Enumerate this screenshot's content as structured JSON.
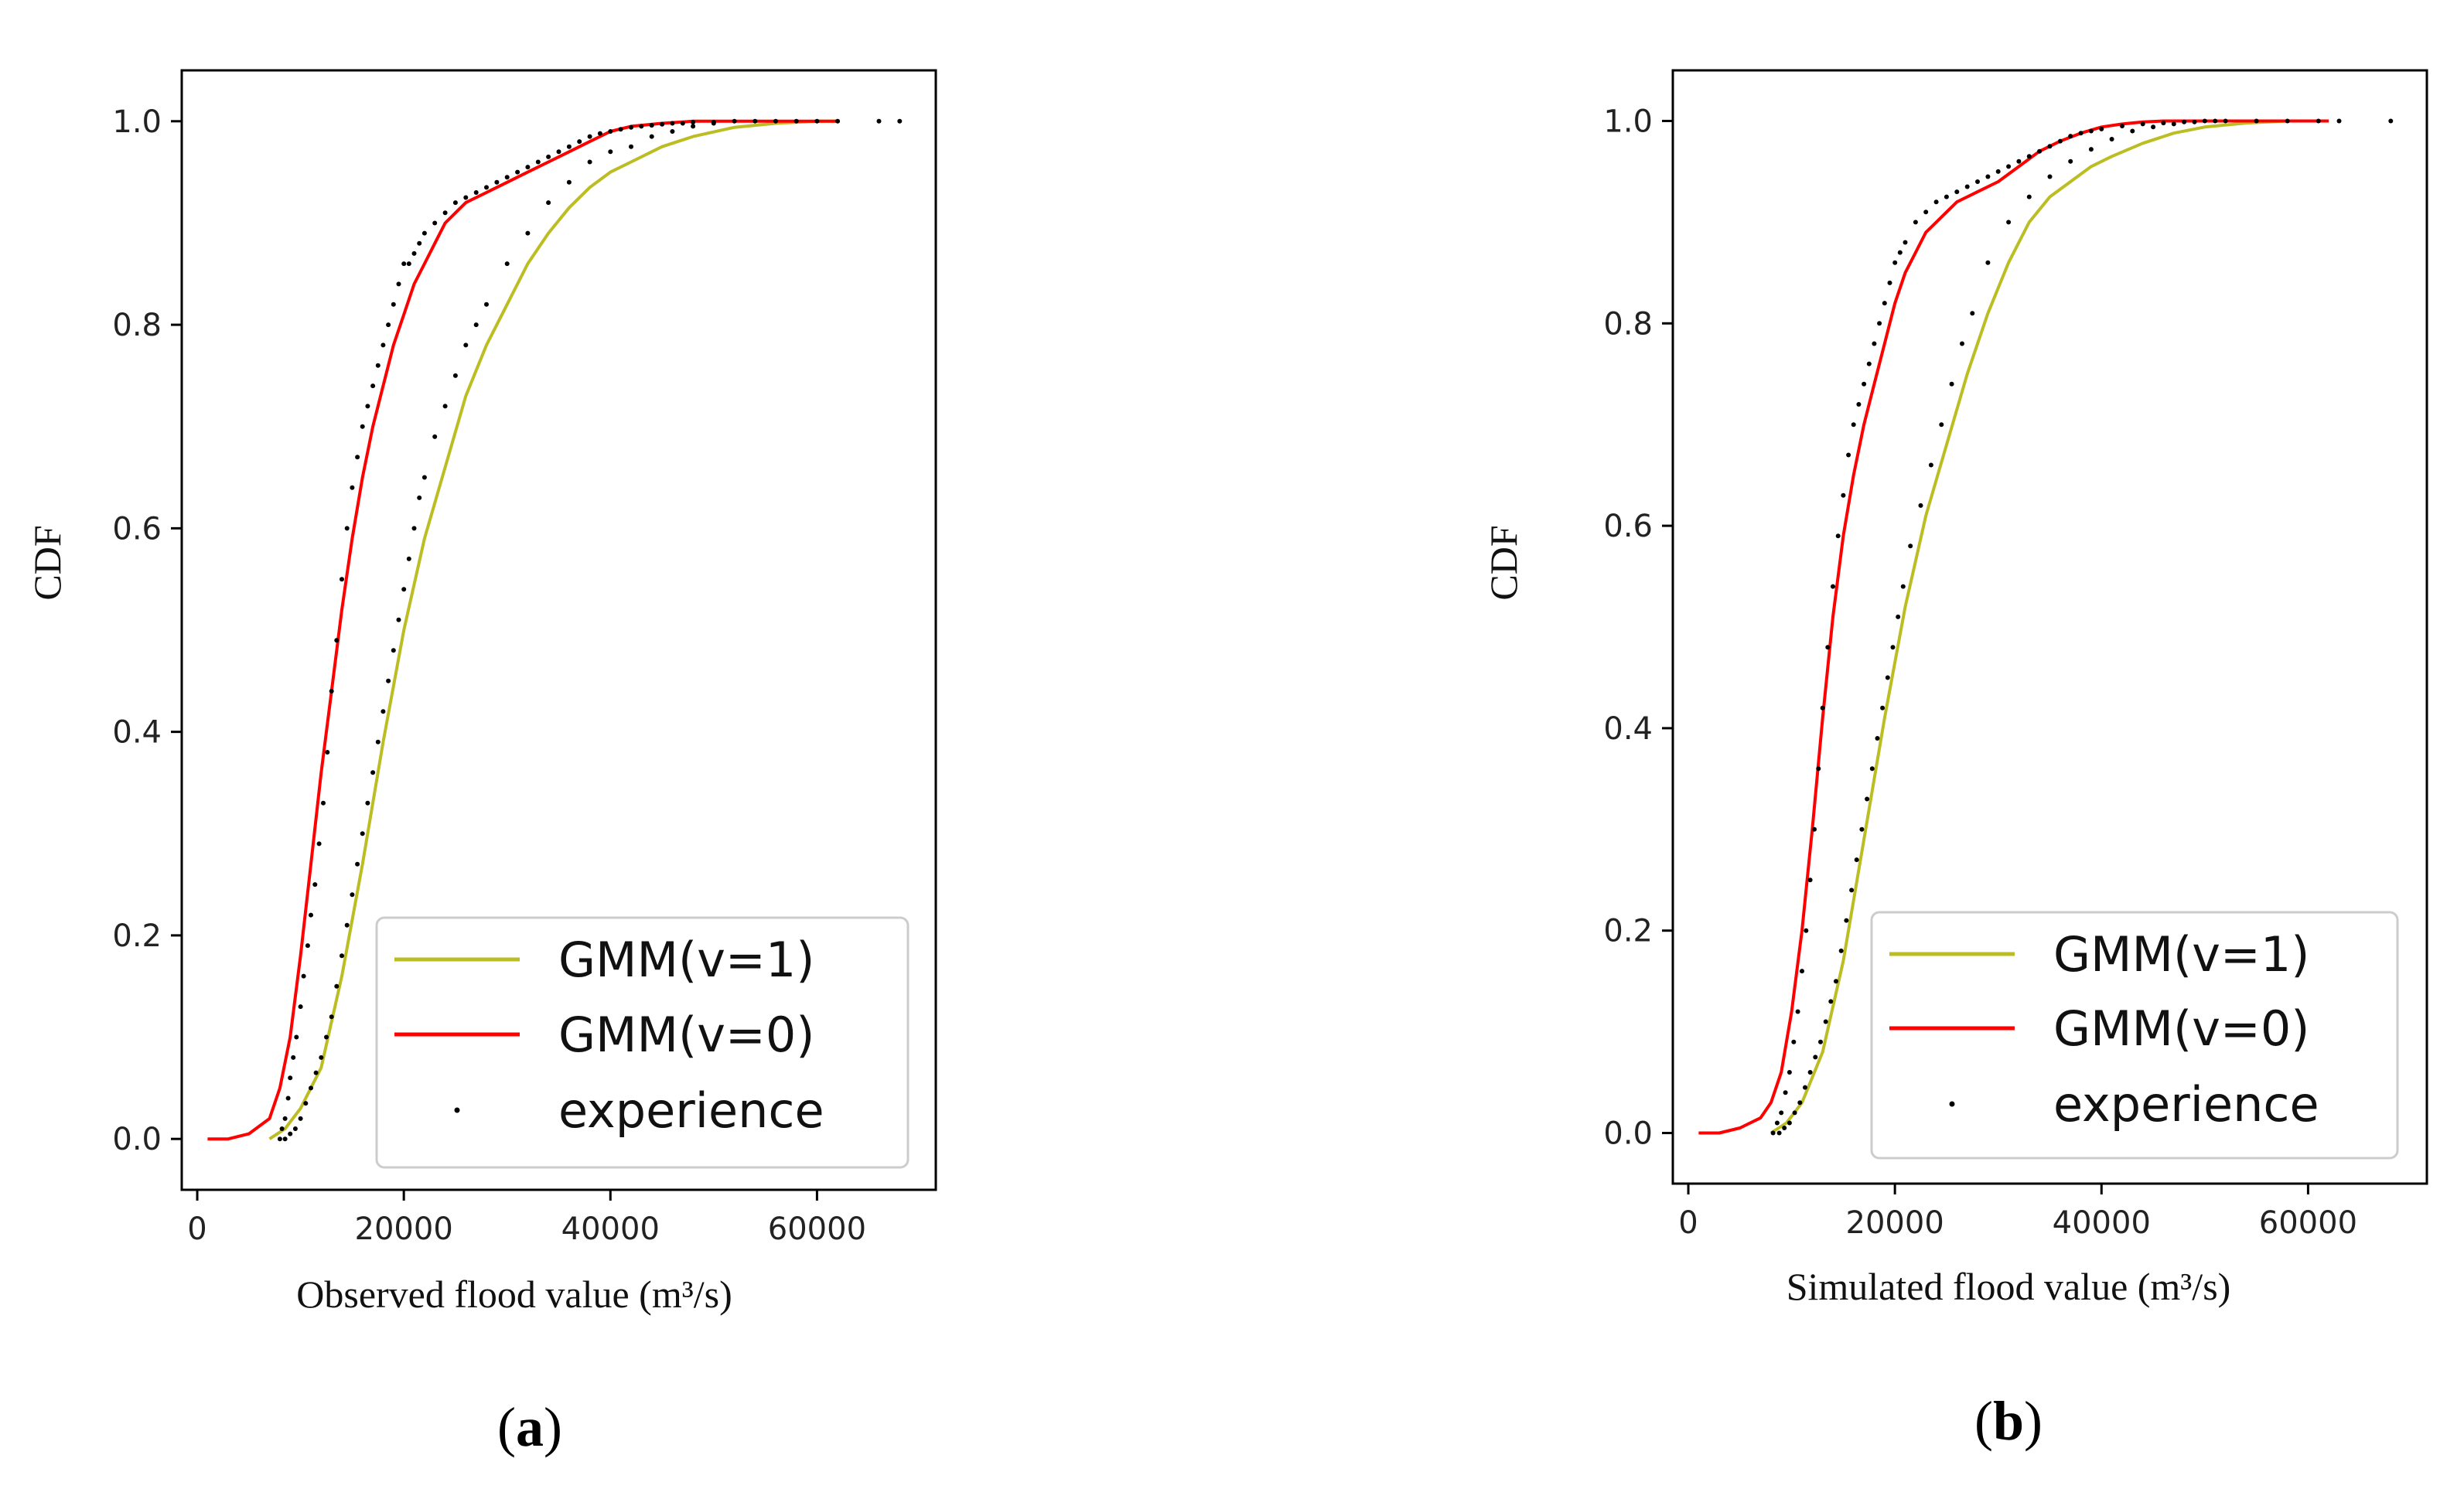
{
  "chart_data": [
    {
      "type": "line",
      "panel_label": "a",
      "xlabel": "Observed flood value (m³/s)",
      "ylabel": "CDF",
      "xlim": [
        -1500,
        71500
      ],
      "ylim": [
        -0.05,
        1.05
      ],
      "xticks": [
        0,
        20000,
        40000,
        60000
      ],
      "xtick_labels": [
        "0",
        "20000",
        "40000",
        "60000"
      ],
      "yticks": [
        0.0,
        0.2,
        0.4,
        0.6,
        0.8,
        1.0
      ],
      "ytick_labels": [
        "0.0",
        "0.2",
        "0.4",
        "0.6",
        "0.8",
        "1.0"
      ],
      "grid": false,
      "legend_position": "bottom-right",
      "series": [
        {
          "name": "GMM(v=1)",
          "style": "line",
          "color": "#bcbd22",
          "x": [
            7000,
            8500,
            10000,
            12000,
            14000,
            16000,
            18000,
            20000,
            22000,
            24000,
            26000,
            28000,
            30000,
            32000,
            34000,
            36000,
            38000,
            40000,
            42000,
            45000,
            48000,
            52000,
            56000,
            60000,
            62000
          ],
          "y": [
            0.0,
            0.01,
            0.03,
            0.07,
            0.16,
            0.27,
            0.39,
            0.5,
            0.59,
            0.66,
            0.73,
            0.78,
            0.82,
            0.86,
            0.89,
            0.915,
            0.935,
            0.95,
            0.96,
            0.975,
            0.985,
            0.994,
            0.998,
            1.0,
            1.0
          ]
        },
        {
          "name": "GMM(v=0)",
          "style": "line",
          "color": "#ff0000",
          "x": [
            1000,
            3000,
            5000,
            7000,
            8000,
            9000,
            10000,
            11000,
            12000,
            13000,
            14000,
            15000,
            16000,
            17000,
            18000,
            19000,
            20000,
            21000,
            22000,
            23000,
            24000,
            25000,
            26000,
            27000,
            28000,
            30000,
            32000,
            34000,
            36000,
            38000,
            40000,
            42000,
            45000,
            48000,
            52000,
            56000,
            62000
          ],
          "y": [
            0.0,
            0.0,
            0.005,
            0.02,
            0.05,
            0.1,
            0.18,
            0.27,
            0.36,
            0.44,
            0.52,
            0.59,
            0.65,
            0.7,
            0.74,
            0.78,
            0.81,
            0.84,
            0.86,
            0.88,
            0.9,
            0.91,
            0.92,
            0.925,
            0.93,
            0.94,
            0.95,
            0.96,
            0.97,
            0.98,
            0.99,
            0.995,
            0.998,
            1.0,
            1.0,
            1.0,
            1.0
          ]
        },
        {
          "name": "experience",
          "style": "scatter",
          "color": "#000000",
          "x": [
            8000,
            8200,
            8500,
            8800,
            9000,
            9300,
            9600,
            10000,
            10300,
            10700,
            11000,
            11400,
            11800,
            12200,
            12600,
            13000,
            13500,
            14000,
            14500,
            15000,
            15500,
            16000,
            16500,
            17000,
            17500,
            18000,
            18500,
            19000,
            19500,
            20000,
            20500,
            21000,
            21500,
            22000,
            23000,
            24000,
            25000,
            26000,
            27000,
            28000,
            29000,
            30000,
            31000,
            32000,
            33000,
            34000,
            35000,
            36000,
            37000,
            38000,
            39000,
            40000,
            41000,
            42000,
            43000,
            44000,
            45000,
            46000,
            47000,
            48000,
            50000,
            52000,
            54000,
            56000,
            58000,
            60000,
            62000,
            66000,
            68000,
            8500,
            9000,
            9500,
            10000,
            10500,
            11000,
            11500,
            12000,
            12500,
            13000,
            13500,
            14000,
            14500,
            15000,
            15500,
            16000,
            16500,
            17000,
            17500,
            18000,
            18500,
            19000,
            19500,
            20000,
            20500,
            21000,
            21500,
            22000,
            23000,
            24000,
            25000,
            26000,
            27000,
            28000,
            30000,
            32000,
            34000,
            36000,
            38000,
            40000,
            42000,
            44000,
            46000,
            48000,
            50000
          ],
          "y": [
            0.0,
            0.01,
            0.02,
            0.04,
            0.06,
            0.08,
            0.1,
            0.13,
            0.16,
            0.19,
            0.22,
            0.25,
            0.29,
            0.33,
            0.38,
            0.44,
            0.49,
            0.55,
            0.6,
            0.64,
            0.67,
            0.7,
            0.72,
            0.74,
            0.76,
            0.78,
            0.8,
            0.82,
            0.84,
            0.86,
            0.86,
            0.87,
            0.88,
            0.89,
            0.9,
            0.91,
            0.92,
            0.925,
            0.93,
            0.935,
            0.94,
            0.945,
            0.95,
            0.955,
            0.96,
            0.965,
            0.97,
            0.975,
            0.98,
            0.985,
            0.988,
            0.99,
            0.992,
            0.994,
            0.995,
            0.996,
            0.997,
            0.998,
            0.998,
            0.999,
            0.999,
            1.0,
            1.0,
            1.0,
            1.0,
            1.0,
            1.0,
            1.0,
            1.0,
            0.0,
            0.005,
            0.01,
            0.02,
            0.035,
            0.05,
            0.065,
            0.08,
            0.1,
            0.12,
            0.15,
            0.18,
            0.21,
            0.24,
            0.27,
            0.3,
            0.33,
            0.36,
            0.39,
            0.42,
            0.45,
            0.48,
            0.51,
            0.54,
            0.57,
            0.6,
            0.63,
            0.65,
            0.69,
            0.72,
            0.75,
            0.78,
            0.8,
            0.82,
            0.86,
            0.89,
            0.92,
            0.94,
            0.96,
            0.97,
            0.975,
            0.985,
            0.99,
            0.995,
            0.998
          ]
        }
      ]
    },
    {
      "type": "line",
      "panel_label": "b",
      "xlabel": "Simulated  flood value (m³/s)",
      "ylabel": "CDF",
      "xlim": [
        -1500,
        71500
      ],
      "ylim": [
        -0.05,
        1.05
      ],
      "xticks": [
        0,
        20000,
        40000,
        60000
      ],
      "xtick_labels": [
        "0",
        "20000",
        "40000",
        "60000"
      ],
      "yticks": [
        0.0,
        0.2,
        0.4,
        0.6,
        0.8,
        1.0
      ],
      "ytick_labels": [
        "0.0",
        "0.2",
        "0.4",
        "0.6",
        "0.8",
        "1.0"
      ],
      "grid": false,
      "legend_position": "bottom-right",
      "series": [
        {
          "name": "GMM(v=1)",
          "style": "line",
          "color": "#bcbd22",
          "x": [
            8000,
            9500,
            11000,
            13000,
            15000,
            17000,
            19000,
            21000,
            23000,
            25000,
            27000,
            29000,
            31000,
            33000,
            35000,
            37000,
            39000,
            41000,
            44000,
            47000,
            50000,
            54000,
            58000,
            62000
          ],
          "y": [
            0.0,
            0.01,
            0.03,
            0.08,
            0.17,
            0.29,
            0.41,
            0.52,
            0.61,
            0.68,
            0.75,
            0.81,
            0.86,
            0.9,
            0.925,
            0.94,
            0.955,
            0.965,
            0.978,
            0.988,
            0.994,
            0.998,
            1.0,
            1.0
          ]
        },
        {
          "name": "GMM(v=0)",
          "style": "line",
          "color": "#ff0000",
          "x": [
            1000,
            3000,
            5000,
            7000,
            8000,
            9000,
            10000,
            11000,
            12000,
            13000,
            14000,
            15000,
            16000,
            17000,
            18000,
            19000,
            20000,
            21000,
            22000,
            23000,
            24000,
            25000,
            26000,
            28000,
            30000,
            32000,
            34000,
            36000,
            38000,
            40000,
            42000,
            44000,
            46000,
            48000,
            52000,
            56000,
            62000
          ],
          "y": [
            0.0,
            0.0,
            0.005,
            0.015,
            0.03,
            0.06,
            0.12,
            0.2,
            0.3,
            0.41,
            0.51,
            0.59,
            0.65,
            0.7,
            0.74,
            0.78,
            0.82,
            0.85,
            0.87,
            0.89,
            0.9,
            0.91,
            0.92,
            0.93,
            0.94,
            0.955,
            0.97,
            0.98,
            0.988,
            0.994,
            0.997,
            0.999,
            1.0,
            1.0,
            1.0,
            1.0,
            1.0
          ]
        },
        {
          "name": "experience",
          "style": "scatter",
          "color": "#000000",
          "x": [
            8200,
            8600,
            9000,
            9400,
            9800,
            10200,
            10600,
            11000,
            11400,
            11800,
            12200,
            12600,
            13000,
            13500,
            14000,
            14500,
            15000,
            15500,
            16000,
            16500,
            17000,
            17500,
            18000,
            18500,
            19000,
            19500,
            20000,
            20500,
            21000,
            22000,
            23000,
            24000,
            25000,
            26000,
            27000,
            28000,
            29000,
            30000,
            31000,
            32000,
            33000,
            34000,
            35000,
            36000,
            37000,
            38000,
            39000,
            40000,
            42000,
            44000,
            46000,
            48000,
            50000,
            52000,
            55000,
            58000,
            61000,
            63000,
            68000,
            8800,
            9300,
            9800,
            10300,
            10800,
            11300,
            11800,
            12300,
            12800,
            13300,
            13800,
            14300,
            14800,
            15300,
            15800,
            16300,
            16800,
            17300,
            17800,
            18300,
            18800,
            19300,
            19800,
            20300,
            20800,
            21500,
            22500,
            23500,
            24500,
            25500,
            26500,
            27500,
            29000,
            31000,
            33000,
            35000,
            37000,
            39000,
            41000,
            43000,
            45000,
            47000,
            49000,
            51000
          ],
          "y": [
            0.0,
            0.01,
            0.02,
            0.04,
            0.06,
            0.09,
            0.12,
            0.16,
            0.2,
            0.25,
            0.3,
            0.36,
            0.42,
            0.48,
            0.54,
            0.59,
            0.63,
            0.67,
            0.7,
            0.72,
            0.74,
            0.76,
            0.78,
            0.8,
            0.82,
            0.84,
            0.86,
            0.87,
            0.88,
            0.9,
            0.91,
            0.92,
            0.925,
            0.93,
            0.935,
            0.94,
            0.945,
            0.95,
            0.955,
            0.96,
            0.965,
            0.97,
            0.975,
            0.98,
            0.985,
            0.988,
            0.99,
            0.992,
            0.995,
            0.997,
            0.998,
            0.999,
            1.0,
            1.0,
            1.0,
            1.0,
            1.0,
            1.0,
            1.0,
            0.0,
            0.005,
            0.01,
            0.02,
            0.03,
            0.045,
            0.06,
            0.075,
            0.09,
            0.11,
            0.13,
            0.15,
            0.18,
            0.21,
            0.24,
            0.27,
            0.3,
            0.33,
            0.36,
            0.39,
            0.42,
            0.45,
            0.48,
            0.51,
            0.54,
            0.58,
            0.62,
            0.66,
            0.7,
            0.74,
            0.78,
            0.81,
            0.86,
            0.9,
            0.925,
            0.945,
            0.96,
            0.972,
            0.982,
            0.99,
            0.994,
            0.997,
            0.999,
            1.0
          ]
        }
      ]
    }
  ]
}
